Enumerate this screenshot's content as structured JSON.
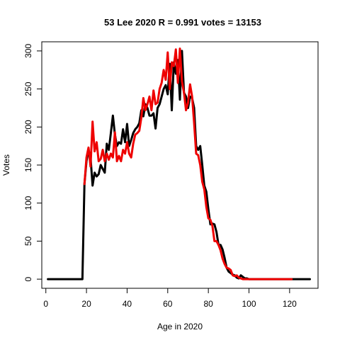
{
  "chart_data": {
    "type": "line",
    "title": "53 Lee 2020 R = 0.991 votes = 13153",
    "xlabel": "Age in 2020",
    "ylabel": "Votes",
    "xlim": [
      -2,
      134
    ],
    "ylim": [
      -12,
      312
    ],
    "xticks": [
      0,
      20,
      40,
      60,
      80,
      100,
      120
    ],
    "yticks": [
      0,
      50,
      100,
      150,
      200,
      250,
      300
    ],
    "grid": false,
    "series": [
      {
        "color": "#000000",
        "x": [
          1,
          2,
          3,
          4,
          5,
          6,
          7,
          8,
          9,
          10,
          11,
          12,
          13,
          14,
          15,
          16,
          17,
          18,
          19,
          20,
          21,
          22,
          23,
          24,
          25,
          26,
          27,
          28,
          29,
          30,
          31,
          32,
          33,
          34,
          35,
          36,
          37,
          38,
          39,
          40,
          41,
          42,
          43,
          44,
          45,
          46,
          47,
          48,
          49,
          50,
          51,
          52,
          53,
          54,
          55,
          56,
          57,
          58,
          59,
          60,
          61,
          62,
          63,
          64,
          65,
          66,
          67,
          68,
          69,
          70,
          71,
          72,
          73,
          74,
          75,
          76,
          77,
          78,
          79,
          80,
          81,
          82,
          83,
          84,
          85,
          86,
          87,
          88,
          89,
          90,
          91,
          92,
          93,
          94,
          95,
          96,
          97,
          98,
          99,
          100,
          101,
          102,
          103,
          104,
          105,
          106,
          107,
          108,
          109,
          110,
          111,
          112,
          113,
          114,
          115,
          116,
          117,
          118,
          119,
          120,
          121,
          122,
          123,
          124,
          125,
          126,
          127,
          128,
          129,
          130
        ],
        "y": [
          0,
          0,
          0,
          0,
          0,
          0,
          0,
          0,
          0,
          0,
          0,
          0,
          0,
          0,
          0,
          0,
          0,
          0,
          125,
          155,
          170,
          160,
          123,
          140,
          135,
          138,
          150,
          145,
          140,
          178,
          170,
          192,
          215,
          190,
          175,
          180,
          178,
          197,
          180,
          204,
          175,
          183,
          192,
          197,
          200,
          205,
          222,
          214,
          230,
          225,
          215,
          215,
          218,
          198,
          225,
          230,
          240,
          250,
          255,
          243,
          283,
          222,
          285,
          270,
          288,
          236,
          300,
          245,
          240,
          225,
          240,
          238,
          225,
          175,
          170,
          175,
          150,
          123,
          115,
          92,
          72,
          73,
          72,
          62,
          45,
          45,
          39,
          28,
          15,
          10,
          8,
          6,
          5,
          2,
          1,
          5,
          3,
          1,
          1,
          0,
          0,
          0,
          0,
          0,
          0,
          0,
          0,
          0,
          0,
          0,
          0,
          0,
          0,
          0,
          0,
          0,
          0,
          0,
          0,
          0,
          0,
          0,
          0,
          0,
          0,
          0,
          0,
          0,
          0,
          0
        ]
      },
      {
        "color": "#ee0000",
        "x": [
          19,
          20,
          21,
          22,
          23,
          24,
          25,
          26,
          27,
          28,
          29,
          30,
          31,
          32,
          33,
          34,
          35,
          36,
          37,
          38,
          39,
          40,
          41,
          42,
          43,
          44,
          45,
          46,
          47,
          48,
          49,
          50,
          51,
          52,
          53,
          54,
          55,
          56,
          57,
          58,
          59,
          60,
          61,
          62,
          63,
          64,
          65,
          66,
          67,
          68,
          69,
          70,
          71,
          72,
          73,
          74,
          75,
          76,
          77,
          78,
          79,
          80,
          81,
          82,
          83,
          84,
          85,
          86,
          87,
          88,
          89,
          90,
          91,
          92,
          93,
          94,
          95,
          96,
          97,
          98,
          99,
          100,
          101,
          102,
          103,
          104,
          105,
          106,
          107,
          108,
          109,
          110,
          111,
          120,
          121
        ],
        "y": [
          125,
          160,
          173,
          148,
          207,
          168,
          180,
          155,
          158,
          170,
          155,
          165,
          157,
          165,
          160,
          193,
          155,
          162,
          155,
          170,
          165,
          180,
          165,
          160,
          178,
          190,
          192,
          195,
          212,
          238,
          222,
          230,
          240,
          222,
          248,
          230,
          232,
          250,
          258,
          275,
          262,
          298,
          250,
          285,
          280,
          302,
          258,
          303,
          260,
          245,
          222,
          232,
          256,
          240,
          205,
          165,
          163,
          150,
          128,
          118,
          95,
          80,
          78,
          70,
          50,
          50,
          45,
          38,
          27,
          20,
          15,
          14,
          12,
          5,
          4,
          5,
          2,
          1,
          0,
          0,
          0,
          0,
          0,
          0,
          0,
          0,
          0,
          0,
          0,
          0,
          0,
          0,
          0,
          0,
          0
        ]
      }
    ]
  }
}
